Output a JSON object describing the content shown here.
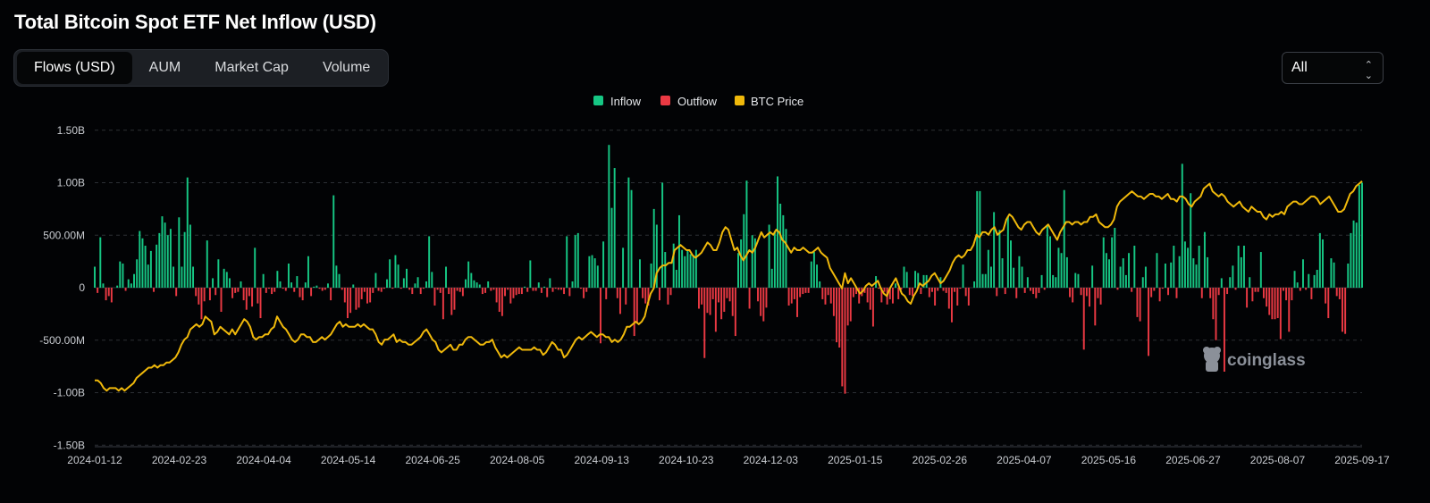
{
  "header": {
    "title": "Total Bitcoin Spot ETF Net Inflow (USD)"
  },
  "tabs": [
    {
      "label": "Flows (USD)",
      "active": true
    },
    {
      "label": "AUM",
      "active": false
    },
    {
      "label": "Market Cap",
      "active": false
    },
    {
      "label": "Volume",
      "active": false
    }
  ],
  "range_select": {
    "value": "All"
  },
  "watermark": "coinglass",
  "colors": {
    "inflow": "#16c784",
    "outflow": "#ea3943",
    "price": "#f0b90b",
    "grid": "#2c2f35"
  },
  "chart_data": {
    "type": "bar",
    "title": "Total Bitcoin Spot ETF Net Inflow (USD)",
    "legend": [
      {
        "name": "Inflow",
        "color": "#16c784"
      },
      {
        "name": "Outflow",
        "color": "#ea3943"
      },
      {
        "name": "BTC Price",
        "color": "#f0b90b"
      }
    ],
    "y_ticks": [
      {
        "value": 1500000000,
        "label": "1.50B"
      },
      {
        "value": 1000000000,
        "label": "1.00B"
      },
      {
        "value": 500000000,
        "label": "500.00M"
      },
      {
        "value": 0,
        "label": "0"
      },
      {
        "value": -500000000,
        "label": "-500.00M"
      },
      {
        "value": -1000000000,
        "label": "-1.00B"
      },
      {
        "value": -1500000000,
        "label": "-1.50B"
      }
    ],
    "ylim": [
      -1500000000,
      1500000000
    ],
    "x_ticks": [
      "2024-01-12",
      "2024-02-23",
      "2024-04-04",
      "2024-05-14",
      "2024-06-25",
      "2024-08-05",
      "2024-09-13",
      "2024-10-23",
      "2024-12-03",
      "2025-01-15",
      "2025-02-26",
      "2025-04-07",
      "2025-05-16",
      "2025-06-27",
      "2025-08-07",
      "2025-09-17"
    ],
    "x_start": "2024-01-12",
    "trading_days_span": 440,
    "flow_units": "USD millions",
    "flows": [
      200,
      -50,
      480,
      40,
      -120,
      -80,
      -140,
      0,
      20,
      250,
      230,
      -30,
      80,
      40,
      130,
      270,
      540,
      470,
      400,
      220,
      350,
      -40,
      410,
      520,
      680,
      620,
      500,
      560,
      200,
      -80,
      670,
      200,
      530,
      1050,
      600,
      200,
      -80,
      -160,
      -300,
      -130,
      450,
      -120,
      90,
      -70,
      270,
      -230,
      180,
      150,
      90,
      -100,
      -50,
      -40,
      60,
      -120,
      -210,
      -80,
      -180,
      380,
      -150,
      -290,
      130,
      -50,
      -10,
      -60,
      -40,
      160,
      60,
      -10,
      -30,
      230,
      50,
      -40,
      110,
      -90,
      -120,
      50,
      300,
      -80,
      10,
      20,
      -10,
      -30,
      -20,
      40,
      -120,
      880,
      210,
      130,
      -20,
      -140,
      -290,
      -240,
      30,
      -210,
      -190,
      -110,
      -40,
      -150,
      -140,
      -50,
      140,
      -30,
      -40,
      -10,
      80,
      270,
      -10,
      310,
      220,
      -10,
      90,
      180,
      -20,
      -60,
      40,
      100,
      -60,
      -10,
      60,
      490,
      150,
      -170,
      -20,
      -50,
      -300,
      200,
      -60,
      -260,
      -210,
      -30,
      -40,
      -80,
      80,
      250,
      140,
      70,
      50,
      30,
      -60,
      -50,
      60,
      -30,
      -20,
      -140,
      -230,
      -270,
      -80,
      -20,
      -150,
      -100,
      -70,
      -60,
      -60,
      10,
      -40,
      260,
      -30,
      -30,
      50,
      -50,
      10,
      -90,
      90,
      -40,
      -10,
      -20,
      -20,
      -60,
      490,
      -80,
      60,
      500,
      520,
      -10,
      -100,
      -40,
      300,
      310,
      280,
      210,
      -530,
      440,
      -110,
      1360,
      760,
      1140,
      -100,
      -250,
      380,
      -160,
      1050,
      930,
      -460,
      -340,
      270,
      -100,
      -150,
      -170,
      230,
      750,
      600,
      -120,
      1000,
      340,
      -160,
      -70,
      420,
      170,
      690,
      360,
      300,
      360,
      320,
      300,
      360,
      -200,
      -160,
      -670,
      -240,
      -260,
      -110,
      -420,
      -140,
      -300,
      -230,
      -100,
      -130,
      -270,
      -460,
      330,
      460,
      700,
      1020,
      -200,
      500,
      470,
      -130,
      -270,
      -320,
      -190,
      600,
      180,
      540,
      1060,
      800,
      690,
      560,
      -170,
      -150,
      -110,
      -280,
      -90,
      -60,
      -50,
      -50,
      250,
      340,
      220,
      60,
      -110,
      -160,
      -70,
      -150,
      -270,
      -520,
      -570,
      -940,
      -1010,
      -360,
      -320,
      -90,
      -60,
      -150,
      -80,
      -50,
      -140,
      -210,
      -370,
      110,
      -10,
      -140,
      -40,
      -160,
      -110,
      -150,
      40,
      -110,
      -20,
      200,
      150,
      -70,
      -80,
      160,
      140,
      -60,
      120,
      120,
      -90,
      -40,
      -170,
      -30,
      100,
      -30,
      -50,
      -200,
      -330,
      -40,
      -170,
      -10,
      220,
      -80,
      -170,
      0,
      60,
      920,
      920,
      130,
      130,
      360,
      200,
      720,
      -80,
      550,
      280,
      -60,
      680,
      450,
      190,
      -100,
      300,
      200,
      -50,
      100,
      -30,
      -60,
      -100,
      -50,
      120,
      -20,
      590,
      490,
      120,
      100,
      380,
      330,
      930,
      290,
      -90,
      -140,
      140,
      130,
      -70,
      -590,
      -80,
      -180,
      210,
      -360,
      -100,
      -160,
      480,
      330,
      270,
      480,
      570,
      -20,
      200,
      280,
      120,
      330,
      -40,
      400,
      -280,
      -320,
      100,
      200,
      -650,
      -90,
      -30,
      330,
      -130,
      -10,
      230,
      -70,
      240,
      400,
      -100,
      300,
      1180,
      440,
      380,
      900,
      280,
      220,
      400,
      -100,
      530,
      290,
      -100,
      -300,
      -500,
      -70,
      90,
      -800,
      -60,
      100,
      210,
      -20,
      400,
      290,
      400,
      -190,
      100,
      -130,
      -40,
      -40,
      340,
      -100,
      -180,
      -260,
      -300,
      -300,
      -290,
      -490,
      -30,
      -120,
      -420,
      -120,
      160,
      50,
      -30,
      270,
      -20,
      130,
      -110,
      120,
      170,
      520,
      460,
      -150,
      -290,
      280,
      240,
      -80,
      -110,
      -420,
      -440,
      230,
      520,
      640,
      620,
      980,
      1000
    ],
    "price_units": "USD thousands",
    "price_axis": {
      "min": 40,
      "max": 126
    },
    "price": [
      46,
      46,
      45,
      43,
      42,
      43,
      43,
      43,
      42,
      43,
      42,
      43,
      44,
      45,
      47,
      48,
      49,
      50,
      51,
      51,
      52,
      51,
      52,
      52,
      53,
      53,
      54,
      55,
      57,
      60,
      62,
      63,
      66,
      67,
      68,
      67,
      68,
      71,
      70,
      69,
      64,
      65,
      67,
      66,
      65,
      64,
      66,
      64,
      66,
      68,
      70,
      69,
      67,
      63,
      62,
      63,
      63,
      64,
      64,
      66,
      67,
      71,
      69,
      67,
      66,
      64,
      62,
      61,
      62,
      64,
      64,
      63,
      63,
      61,
      61,
      62,
      63,
      62,
      63,
      64,
      66,
      68,
      69,
      67,
      68,
      67,
      67,
      67,
      68,
      67,
      68,
      67,
      66,
      66,
      64,
      61,
      60,
      62,
      62,
      63,
      64,
      61,
      62,
      61,
      61,
      60,
      60,
      61,
      62,
      63,
      65,
      66,
      64,
      62,
      61,
      58,
      57,
      58,
      59,
      60,
      58,
      58,
      60,
      60,
      62,
      63,
      63,
      62,
      61,
      60,
      60,
      61,
      61,
      62,
      59,
      57,
      55,
      56,
      55,
      56,
      57,
      58,
      59,
      58,
      58,
      58,
      58,
      59,
      58,
      58,
      56,
      57,
      59,
      61,
      60,
      58,
      58,
      55,
      56,
      58,
      60,
      62,
      63,
      62,
      63,
      64,
      65,
      64,
      63,
      64,
      64,
      63,
      63,
      61,
      62,
      61,
      62,
      64,
      67,
      67,
      68,
      69,
      68,
      69,
      71,
      76,
      80,
      82,
      88,
      90,
      91,
      91,
      92,
      92,
      97,
      98,
      99,
      98,
      97,
      97,
      95,
      94,
      95,
      96,
      98,
      100,
      99,
      97,
      97,
      100,
      104,
      106,
      105,
      101,
      97,
      98,
      95,
      93,
      95,
      97,
      96,
      98,
      101,
      104,
      102,
      103,
      104,
      103,
      105,
      104,
      101,
      100,
      98,
      96,
      98,
      97,
      97,
      98,
      97,
      96,
      96,
      97,
      98,
      96,
      95,
      94,
      90,
      88,
      86,
      84,
      82,
      88,
      84,
      86,
      84,
      82,
      80,
      81,
      83,
      84,
      83,
      84,
      85,
      82,
      80,
      79,
      82,
      84,
      86,
      83,
      80,
      79,
      77,
      76,
      79,
      81,
      84,
      83,
      84,
      85,
      87,
      88,
      86,
      84,
      85,
      87,
      89,
      92,
      94,
      95,
      94,
      95,
      97,
      97,
      99,
      103,
      102,
      104,
      104,
      103,
      105,
      106,
      103,
      104,
      105,
      109,
      111,
      110,
      108,
      106,
      105,
      107,
      108,
      108,
      106,
      104,
      103,
      105,
      106,
      107,
      105,
      103,
      101,
      104,
      106,
      108,
      108,
      107,
      108,
      108,
      107,
      108,
      108,
      110,
      110,
      111,
      108,
      107,
      106,
      106,
      107,
      109,
      114,
      116,
      117,
      118,
      119,
      120,
      119,
      118,
      118,
      117,
      118,
      119,
      119,
      118,
      118,
      117,
      118,
      119,
      117,
      117,
      116,
      118,
      118,
      117,
      115,
      114,
      116,
      117,
      118,
      121,
      122,
      123,
      120,
      119,
      118,
      119,
      118,
      116,
      115,
      114,
      115,
      116,
      114,
      113,
      112,
      114,
      113,
      112,
      112,
      110,
      109,
      111,
      110,
      111,
      111,
      112,
      111,
      114,
      115,
      116,
      116,
      115,
      115,
      116,
      117,
      118,
      118,
      117,
      115,
      116,
      117,
      118,
      116,
      114,
      112,
      112,
      113,
      116,
      119,
      120,
      122,
      123,
      124
    ]
  }
}
